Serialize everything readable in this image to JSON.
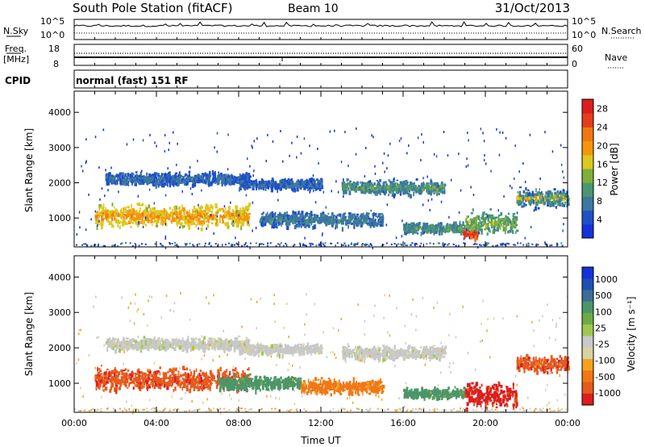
{
  "header": {
    "station": "South Pole Station (fitACF)",
    "beam": "Beam 10",
    "date": "31/Oct/2013"
  },
  "strip_labels": {
    "nsky": "N.Sky",
    "nsearch": "N.Search",
    "freq_top": "Freq.",
    "freq_unit": "[MHz]",
    "nave": "Nave",
    "cpid": "CPID",
    "cpid_value": "normal (fast) 151 RF"
  },
  "strip_ticks": {
    "nsky_left": [
      "10^5",
      "10^0"
    ],
    "nsky_right": [
      "10^5",
      "10^0"
    ],
    "freq_left": [
      "18",
      "8"
    ],
    "nave_right": [
      "60",
      "0"
    ]
  },
  "colors": {
    "power_scale": [
      "#1432dc",
      "#1e50c8",
      "#3c78a0",
      "#4b9673",
      "#7daf3c",
      "#dcc81e",
      "#f5960a",
      "#f07814",
      "#e63c1e",
      "#dc1e1e"
    ],
    "velocity_scale": [
      "#1432dc",
      "#1e50b4",
      "#3c6e96",
      "#4b9669",
      "#6eaa46",
      "#a0c850",
      "#c8c8c8",
      "#d7d2a0",
      "#f5a01e",
      "#f07814",
      "#e65a1e",
      "#dc1e1e"
    ]
  },
  "chart_data": [
    {
      "type": "heatmap",
      "panel": "power",
      "ylabel": "Slant Range [km]",
      "xlim": [
        "00:00",
        "24:00"
      ],
      "ylim": [
        180,
        4600
      ],
      "yticks": [
        1000,
        2000,
        3000,
        4000
      ],
      "colorbar": {
        "label": "Power [dB]",
        "ticks": [
          4,
          8,
          12,
          16,
          20,
          24,
          28
        ],
        "range": [
          0,
          30
        ]
      },
      "echo_regions": [
        {
          "t_start": 1.0,
          "t_end": 8.5,
          "r_center": 1100,
          "r_halfwidth": 320,
          "typical": 16,
          "peak": 22
        },
        {
          "t_start": 1.5,
          "t_end": 8.5,
          "r_center": 2150,
          "r_halfwidth": 180,
          "typical": 5,
          "peak": 8
        },
        {
          "t_start": 8.0,
          "t_end": 12.0,
          "r_center": 2000,
          "r_halfwidth": 160,
          "typical": 5,
          "peak": 8
        },
        {
          "t_start": 9.0,
          "t_end": 15.0,
          "r_center": 1000,
          "r_halfwidth": 220,
          "typical": 6,
          "peak": 10
        },
        {
          "t_start": 13.0,
          "t_end": 18.0,
          "r_center": 1900,
          "r_halfwidth": 200,
          "typical": 7,
          "peak": 14
        },
        {
          "t_start": 16.0,
          "t_end": 19.0,
          "r_center": 750,
          "r_halfwidth": 150,
          "typical": 8,
          "peak": 12
        },
        {
          "t_start": 18.9,
          "t_end": 19.6,
          "r_center": 600,
          "r_halfwidth": 180,
          "typical": 24,
          "peak": 28
        },
        {
          "t_start": 19.0,
          "t_end": 21.5,
          "r_center": 900,
          "r_halfwidth": 300,
          "typical": 10,
          "peak": 16
        },
        {
          "t_start": 21.5,
          "t_end": 24.0,
          "r_center": 1600,
          "r_halfwidth": 250,
          "typical": 6,
          "peak": 20
        }
      ]
    },
    {
      "type": "heatmap",
      "panel": "velocity",
      "xlabel": "Time UT",
      "ylabel": "Slant Range [km]",
      "xlim": [
        "00:00",
        "24:00"
      ],
      "ylim": [
        180,
        4600
      ],
      "xticks": [
        "00:00",
        "04:00",
        "08:00",
        "12:00",
        "16:00",
        "20:00",
        "00:00"
      ],
      "yticks": [
        1000,
        2000,
        3000,
        4000
      ],
      "colorbar": {
        "label": "Velocity [m s⁻¹]",
        "ticks": [
          1000,
          500,
          100,
          25,
          -25,
          -100,
          -500,
          -1000
        ]
      },
      "echo_regions": [
        {
          "t_start": 1.0,
          "t_end": 8.5,
          "r_center": 1150,
          "r_halfwidth": 320,
          "velocity": -400
        },
        {
          "t_start": 1.5,
          "t_end": 8.5,
          "r_center": 2150,
          "r_halfwidth": 180,
          "velocity": 0
        },
        {
          "t_start": 8.0,
          "t_end": 12.0,
          "r_center": 2000,
          "r_halfwidth": 160,
          "velocity": 0
        },
        {
          "t_start": 7.0,
          "t_end": 11.0,
          "r_center": 1050,
          "r_halfwidth": 200,
          "velocity": 150
        },
        {
          "t_start": 11.0,
          "t_end": 15.0,
          "r_center": 950,
          "r_halfwidth": 220,
          "velocity": -150
        },
        {
          "t_start": 13.0,
          "t_end": 18.0,
          "r_center": 1900,
          "r_halfwidth": 200,
          "velocity": 0
        },
        {
          "t_start": 16.0,
          "t_end": 19.0,
          "r_center": 750,
          "r_halfwidth": 150,
          "velocity": 150
        },
        {
          "t_start": 19.0,
          "t_end": 21.5,
          "r_center": 700,
          "r_halfwidth": 350,
          "velocity": -700
        },
        {
          "t_start": 21.5,
          "t_end": 24.0,
          "r_center": 1600,
          "r_halfwidth": 250,
          "velocity": -400
        }
      ]
    }
  ]
}
